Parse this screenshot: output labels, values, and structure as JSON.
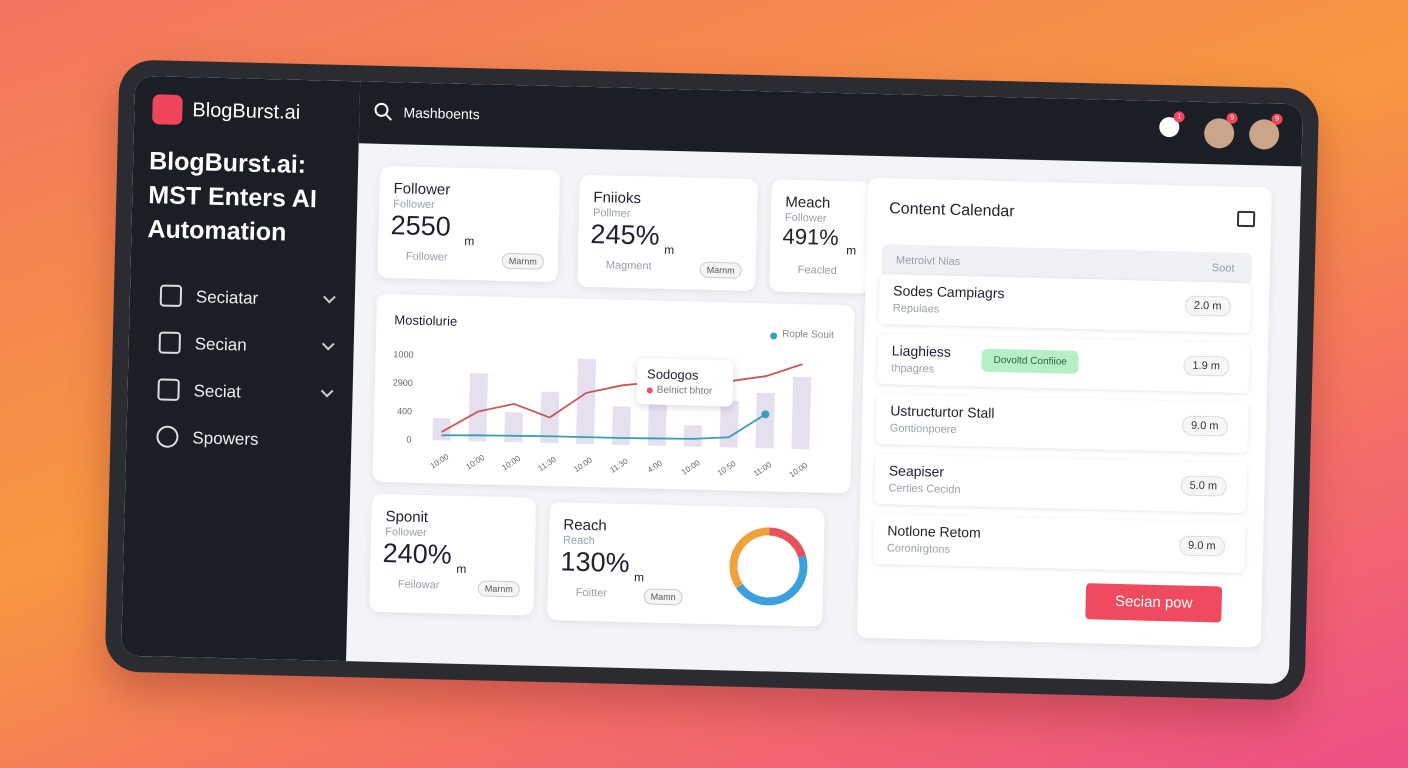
{
  "brand": "BlogBurst.ai",
  "headline": "BlogBurst.ai: MST Enters AI Automation",
  "sidebar": {
    "items": [
      "Seciatar",
      "Secian",
      "Seciat",
      "Spowers"
    ]
  },
  "topbar": {
    "search": "Mashboents",
    "badges": [
      "1",
      "9",
      "9"
    ]
  },
  "stats": [
    {
      "title": "Follower",
      "subtitle": "Follower",
      "value": "2550",
      "unit": "m",
      "foot": "Follower",
      "button": "Marnm"
    },
    {
      "title": "Fniioks",
      "subtitle": "Pollmer",
      "value": "245%",
      "unit": "m",
      "foot": "Magment",
      "button": "Marnm"
    },
    {
      "title": "Meach",
      "subtitle": "Follower",
      "value": "491%",
      "unit": "m",
      "foot": "Feacled"
    },
    {
      "title": "Sponit",
      "subtitle": "Follower",
      "value": "240%",
      "unit": "m",
      "foot": "Feilowar",
      "button": "Marnm"
    },
    {
      "title": "Reach",
      "subtitle": "Reach",
      "value": "130%",
      "unit": "m",
      "foot": "Foitter",
      "button": "Mamn"
    }
  ],
  "chart": {
    "type": "bar-line",
    "title": "Mostiolurie",
    "legend": "Rople Souit",
    "tooltip": {
      "title": "Sodogos",
      "text": "Belnict bhtor"
    },
    "y_labels": [
      "1000",
      "2900",
      "400",
      "0"
    ],
    "ylim": [
      0,
      1000
    ],
    "categories": [
      "10:00",
      "10:00",
      "10:00",
      "11:30",
      "10:00",
      "11:30",
      "4:00",
      "10:00",
      "10:50",
      "11:00",
      "10:00"
    ],
    "bars": [
      260,
      800,
      350,
      600,
      1000,
      450,
      750,
      250,
      550,
      650,
      850
    ],
    "bar_color": "#e6dff0",
    "series": [
      {
        "color": "#c8564f",
        "values": [
          100,
          350,
          450,
          300,
          600,
          700,
          750,
          720,
          780,
          850,
          1000
        ]
      },
      {
        "color": "#3a9fb5",
        "values": [
          60,
          70,
          75,
          80,
          80,
          80,
          85,
          90,
          120,
          400,
          null
        ]
      }
    ]
  },
  "donut": {
    "values": [
      20,
      45,
      35
    ],
    "colors": [
      "#e8505b",
      "#3b9fe0",
      "#f2a03a"
    ]
  },
  "calendar": {
    "title": "Content Calendar",
    "header": [
      "Metroivt Nias",
      "Soot"
    ],
    "rows": [
      {
        "title": "Sodes Campiagrs",
        "sub": "Repuiaes",
        "value": "2.0 m"
      },
      {
        "title": "Liaghiess",
        "sub": "thpagres",
        "value": "1.9 m",
        "tag": "Dovoltd Confiioe"
      },
      {
        "title": "Ustructurtor Stall",
        "sub": "Gontionpoere",
        "value": "9.0 m"
      },
      {
        "title": "Seapiser",
        "sub": "Certies Cecidn",
        "value": "5.0 m"
      },
      {
        "title": "Notlone Retom",
        "sub": "Coronirgtons",
        "value": "9.0 m"
      }
    ],
    "button": "Secian pow"
  }
}
